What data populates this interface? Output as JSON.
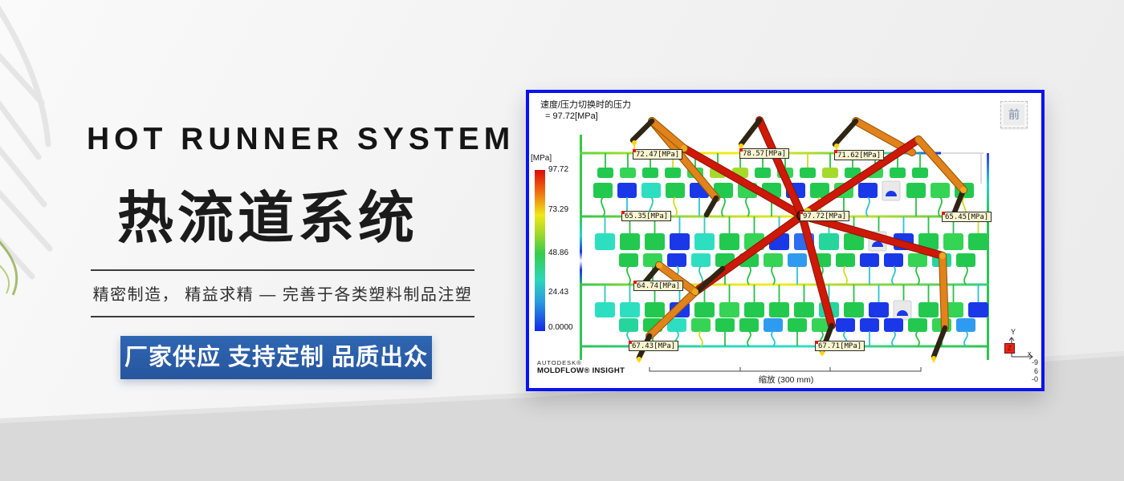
{
  "colors": {
    "cta_blue": "#2a5caa",
    "window_border_blue": "#0b12ee",
    "legend_top_red": "#dd0a0a",
    "legend_bottom_blue": "#1428e8"
  },
  "hero": {
    "title_en": "HOT RUNNER SYSTEM",
    "title_zh": "热流道系统",
    "tagline": "精密制造， 精益求精 — 完善于各类塑料制品注塑",
    "cta_label": "厂家供应 支持定制 品质出众"
  },
  "sim": {
    "title_line1": "速度/压力切换时的压力",
    "title_line2": "= 97.72[MPa]",
    "stamp_label": "前",
    "legend_unit": "[MPa]",
    "legend_ticks": [
      "97.72",
      "73.29",
      "48.86",
      "24.43",
      "0.0000"
    ],
    "pressure_labels": [
      "72.47[MPa]",
      "78.57[MPa]",
      "71.62[MPa]",
      "65.35[MPa]",
      "97.72[MPa]",
      "65.45[MPa]",
      "64.74[MPa]",
      "67.43[MPa]",
      "67.71[MPa]"
    ],
    "logo_line1": "AUTODESK®",
    "logo_line2": "MOLDFLOW® INSIGHT",
    "scale_label": "缩放 (300 mm)",
    "axis": {
      "y": "Y",
      "x": "x",
      "z": "Z",
      "ticks": [
        "-9",
        "6",
        "-0"
      ]
    }
  }
}
